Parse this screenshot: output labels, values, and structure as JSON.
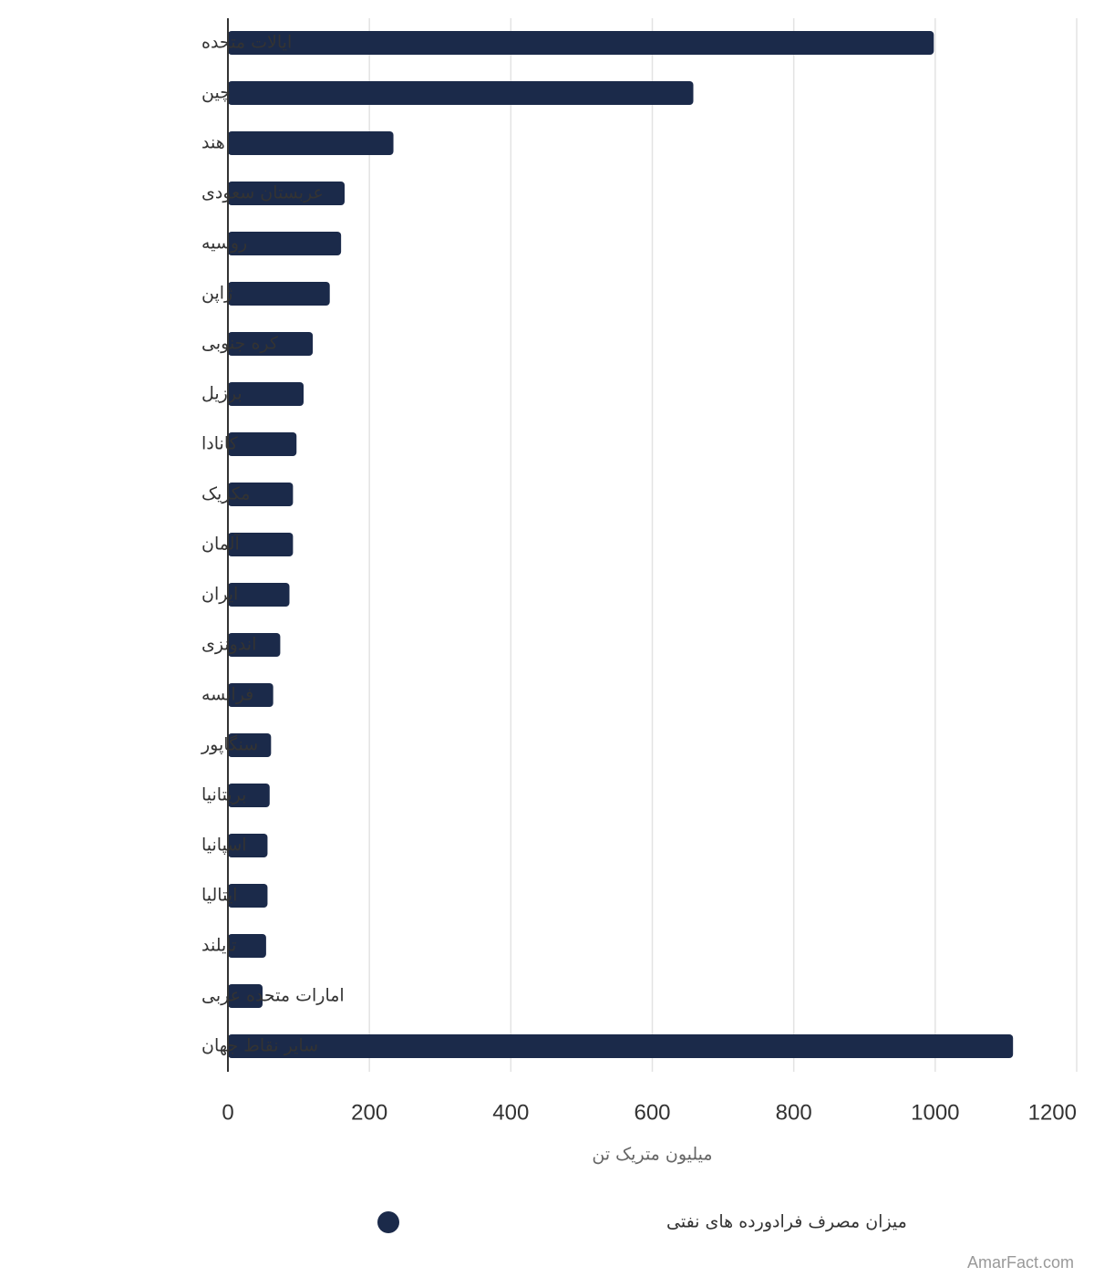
{
  "chart_data": {
    "type": "bar",
    "orientation": "horizontal",
    "categories": [
      "ایالات متحده",
      "چین",
      "هند",
      "عربستان سعودی",
      "روسیه",
      "ژاپن",
      "کره جنوبی",
      "برزیل",
      "کانادا",
      "مکزیک",
      "آلمان",
      "ایران",
      "اندونزی",
      "فرانسه",
      "سنگاپور",
      "بریتانیا",
      "اسپانیا",
      "ایتالیا",
      "تایلند",
      "امارات متحده عربی",
      "سایر نقاط جهان"
    ],
    "series": [
      {
        "name": "میزان مصرف فرادورده های نفتی",
        "color": "#1b2a4a",
        "values": [
          998,
          658,
          234,
          165,
          160,
          144,
          120,
          107,
          97,
          92,
          92,
          87,
          74,
          64,
          61,
          59,
          56,
          56,
          54,
          49,
          1110
        ]
      }
    ],
    "xlabel": "میلیون متریک تن",
    "xlim": [
      0,
      1200
    ],
    "xticks": [
      0,
      200,
      400,
      600,
      800,
      1000,
      1200
    ],
    "grid": true,
    "legend_position": "bottom-center"
  },
  "credit": "AmarFact.com"
}
